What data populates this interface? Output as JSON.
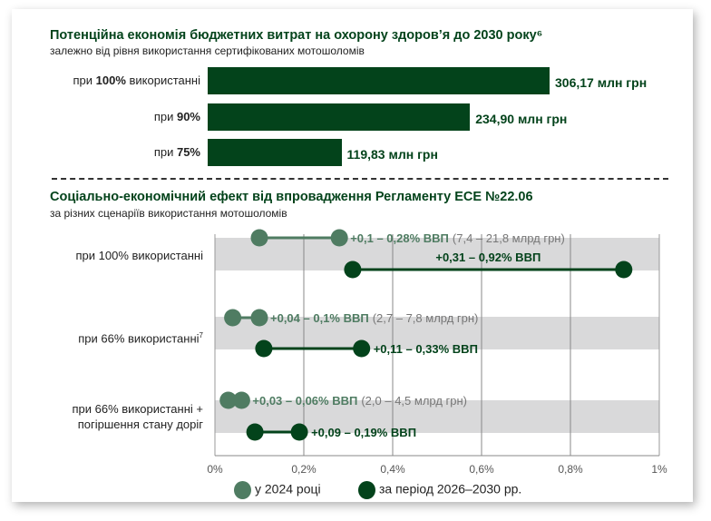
{
  "colors": {
    "year2024": "#4f7c62",
    "period": "#03431b",
    "band": "#d9d9da"
  },
  "chart_data": [
    {
      "type": "bar",
      "title": "Потенційна економія бюджетних витрат на охорону здоров’я до 2030 року⁶",
      "subtitle": "залежно від рівня використання сертифікованих мотошоломів",
      "categories": [
        {
          "pre": "при ",
          "bold": "100%",
          "post": " використанні"
        },
        {
          "pre": "при ",
          "bold": "90%",
          "post": ""
        },
        {
          "pre": "при ",
          "bold": "75%",
          "post": ""
        }
      ],
      "values": [
        306.17,
        234.9,
        119.83
      ],
      "data_labels": [
        "306,17 млн грн",
        "234,90 млн грн",
        "119,83 млн грн"
      ],
      "orientation": "horizontal"
    },
    {
      "type": "dumbbell",
      "title": "Соціально-економічний ефект від впровадження Регламенту ЕСЕ №22.06",
      "subtitle": "за різних сценаріїв використання мотошоломів",
      "xlim": [
        0,
        1
      ],
      "xticks": [
        "0%",
        "0,2%",
        "0,4%",
        "0,6%",
        "0,8%",
        "1%"
      ],
      "grid": true,
      "legend_position": "bottom",
      "series_names": [
        "у 2024 році",
        "за період 2026–2030 рр."
      ],
      "rows": [
        {
          "label": "при 100% використанні",
          "sup": "",
          "y2024": [
            0.1,
            0.28
          ],
          "y2024_label": "+0,1 – 0,28% ВВП",
          "y2024_note": "(7,4 – 21,8 млрд грн)",
          "period": [
            0.31,
            0.92
          ],
          "period_label": "+0,31 – 0,92% ВВП"
        },
        {
          "label": "при 66% використанні",
          "sup": "7",
          "y2024": [
            0.04,
            0.1
          ],
          "y2024_label": "+0,04 – 0,1% ВВП",
          "y2024_note": "(2,7 – 7,8 млрд грн)",
          "period": [
            0.11,
            0.33
          ],
          "period_label": "+0,11 – 0,33% ВВП"
        },
        {
          "label": "при 66% використанні +",
          "label2": "погіршення стану доріг",
          "sup": "",
          "y2024": [
            0.03,
            0.06
          ],
          "y2024_label": "+0,03 – 0,06% ВВП",
          "y2024_note": "(2,0 – 4,5 млрд грн)",
          "period": [
            0.09,
            0.19
          ],
          "period_label": "+0,09 – 0,19% ВВП"
        }
      ]
    }
  ]
}
